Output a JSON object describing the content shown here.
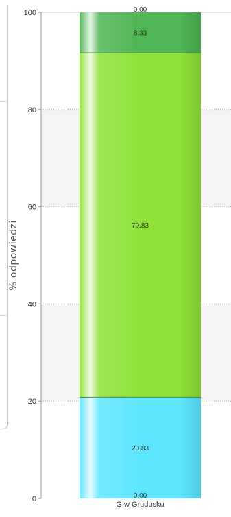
{
  "chart_data": {
    "type": "bar",
    "stacked": true,
    "categories": [
      "G w Grudusku"
    ],
    "ylabel": "% odpowiedzi",
    "ylim": [
      0,
      100
    ],
    "yticks": [
      0,
      20,
      40,
      60,
      80,
      100
    ],
    "grid": true,
    "series": [
      {
        "values": [
          20.83
        ],
        "color": "#5ee6ff",
        "label": "20.83"
      },
      {
        "values": [
          70.83
        ],
        "color": "#8fe23a",
        "label": "70.83"
      },
      {
        "values": [
          8.33
        ],
        "color": "#4fb556",
        "label": "8.33"
      }
    ],
    "zero_labels": [
      {
        "position": "bottom",
        "label": "0.00"
      },
      {
        "position": "top",
        "label": "0.00"
      }
    ]
  }
}
